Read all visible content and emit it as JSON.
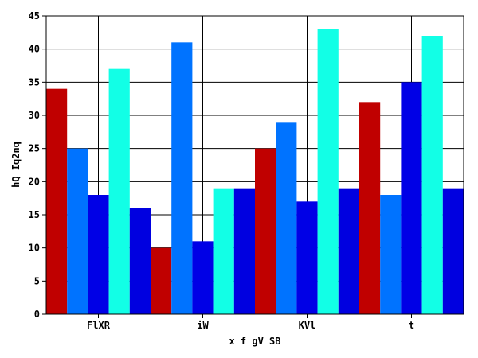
{
  "chart_data": {
    "type": "bar",
    "categories": [
      "FlXR",
      "iW",
      "KVl",
      "t"
    ],
    "series": [
      {
        "color": "#c00000",
        "values": [
          34,
          10,
          25,
          32
        ]
      },
      {
        "color": "#0073ff",
        "values": [
          25,
          41,
          29,
          18
        ]
      },
      {
        "color": "#0000e6",
        "values": [
          18,
          11,
          17,
          35
        ]
      },
      {
        "color": "#12ffe6",
        "values": [
          37,
          19,
          43,
          42
        ]
      },
      {
        "color": "#0000e0",
        "values": [
          16,
          19,
          19,
          19
        ]
      }
    ],
    "title": "",
    "xlabel": "x f gV SB",
    "ylabel": "hQ Iq2nq",
    "ylim": [
      0,
      45
    ],
    "yticks": [
      0,
      5,
      10,
      15,
      20,
      25,
      30,
      35,
      40,
      45
    ],
    "grid": true,
    "legend": "none"
  }
}
